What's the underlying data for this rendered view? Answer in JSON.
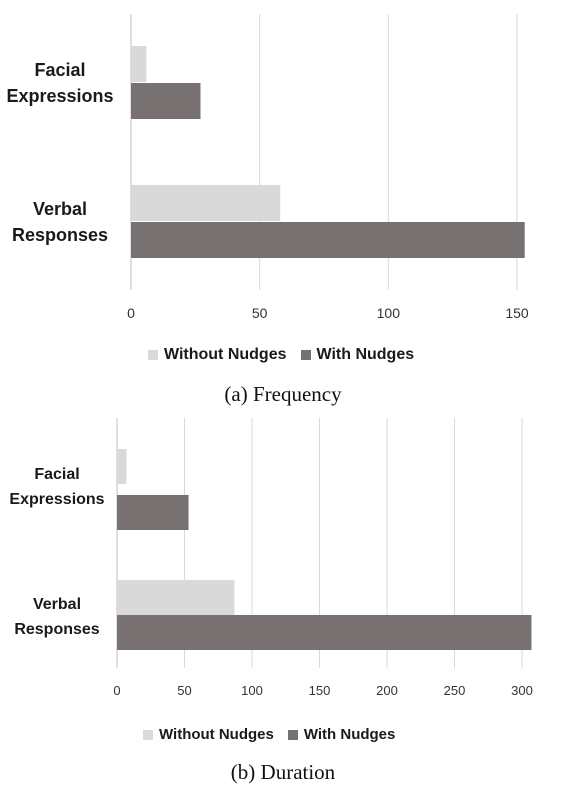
{
  "colors": {
    "without_nudges": "#d9d9d9",
    "with_nudges": "#777171",
    "grid": "#d9d9d9",
    "axis": "#bfbfbf"
  },
  "panel_a": {
    "caption": "(a)  Frequency"
  },
  "panel_b": {
    "caption": "(b)  Duration"
  },
  "chart_data": [
    {
      "type": "bar",
      "orientation": "horizontal",
      "categories": [
        [
          "Facial",
          "Expressions"
        ],
        [
          "Verbal",
          "Responses"
        ]
      ],
      "series": [
        {
          "name": "Without Nudges",
          "values": [
            6,
            58
          ]
        },
        {
          "name": "With Nudges",
          "values": [
            27,
            153
          ]
        }
      ],
      "xlim": [
        0,
        150
      ],
      "xticks": [
        0,
        50,
        100,
        150
      ],
      "grid": true,
      "legend": "bottom"
    },
    {
      "type": "bar",
      "orientation": "horizontal",
      "categories": [
        [
          "Facial",
          "Expressions"
        ],
        [
          "Verbal",
          "Responses"
        ]
      ],
      "series": [
        {
          "name": "Without Nudges",
          "values": [
            7,
            87
          ]
        },
        {
          "name": "With Nudges",
          "values": [
            53,
            307
          ]
        }
      ],
      "xlim": [
        0,
        300
      ],
      "xticks": [
        0,
        50,
        100,
        150,
        200,
        250,
        300
      ],
      "grid": true,
      "legend": "bottom"
    }
  ]
}
